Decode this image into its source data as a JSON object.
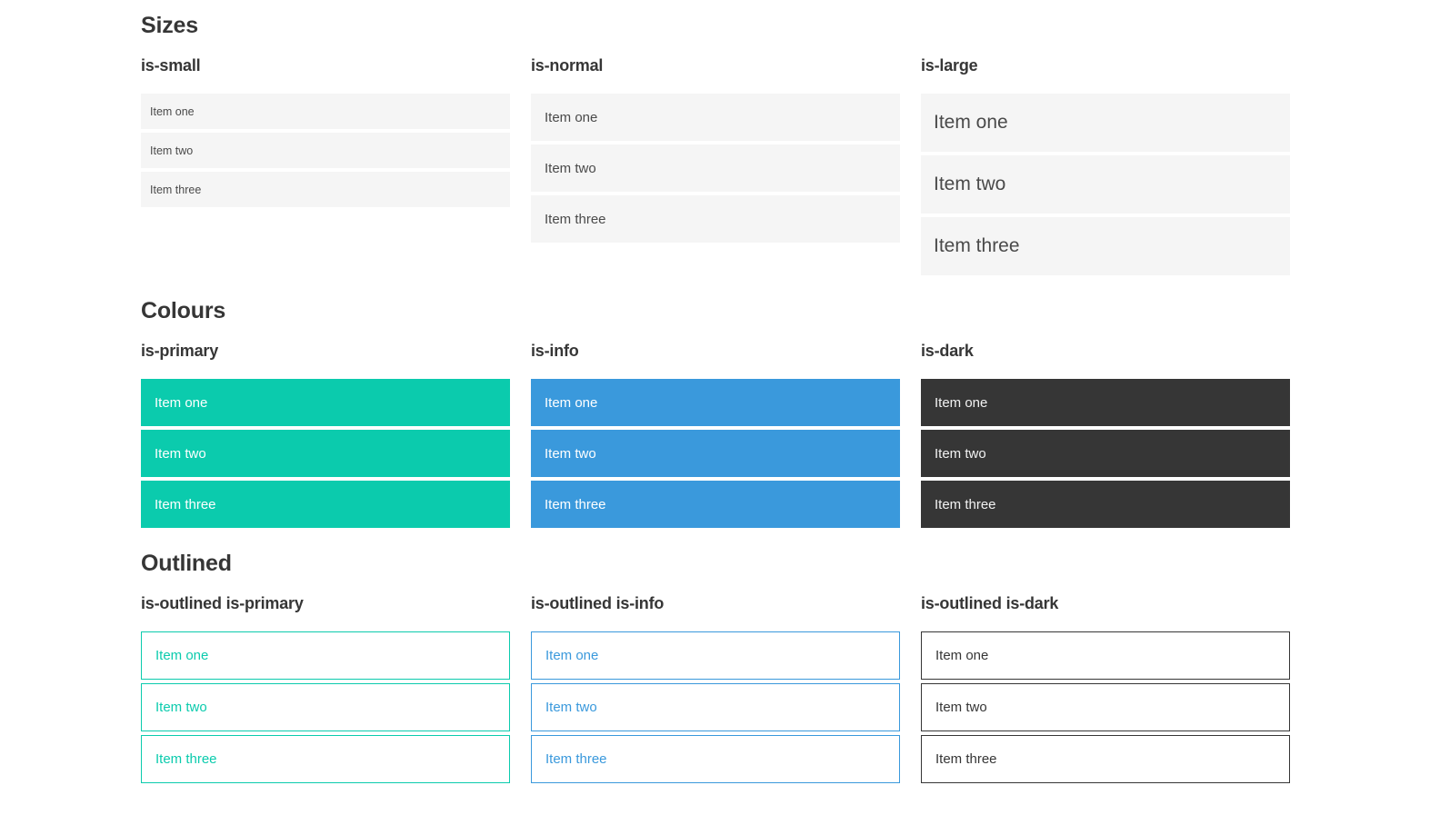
{
  "theme": {
    "primary": "#0bcbad",
    "info": "#3a99dc",
    "dark": "#363636",
    "item-bg": "#f5f5f5",
    "item-text": "#4a4a4a",
    "heading": "#363636",
    "on-color": "#ffffff"
  },
  "sections": [
    {
      "title": "Sizes",
      "columns": [
        {
          "label": "is-small",
          "items": [
            "Item one",
            "Item two",
            "Item three"
          ]
        },
        {
          "label": "is-normal",
          "items": [
            "Item one",
            "Item two",
            "Item three"
          ]
        },
        {
          "label": "is-large",
          "items": [
            "Item one",
            "Item two",
            "Item three"
          ]
        }
      ]
    },
    {
      "title": "Colours",
      "columns": [
        {
          "label": "is-primary",
          "items": [
            "Item one",
            "Item two",
            "Item three"
          ]
        },
        {
          "label": "is-info",
          "items": [
            "Item one",
            "Item two",
            "Item three"
          ]
        },
        {
          "label": "is-dark",
          "items": [
            "Item one",
            "Item two",
            "Item three"
          ]
        }
      ]
    },
    {
      "title": "Outlined",
      "columns": [
        {
          "label": "is-outlined is-primary",
          "items": [
            "Item one",
            "Item two",
            "Item three"
          ]
        },
        {
          "label": "is-outlined is-info",
          "items": [
            "Item one",
            "Item two",
            "Item three"
          ]
        },
        {
          "label": "is-outlined is-dark",
          "items": [
            "Item one",
            "Item two",
            "Item three"
          ]
        }
      ]
    }
  ]
}
